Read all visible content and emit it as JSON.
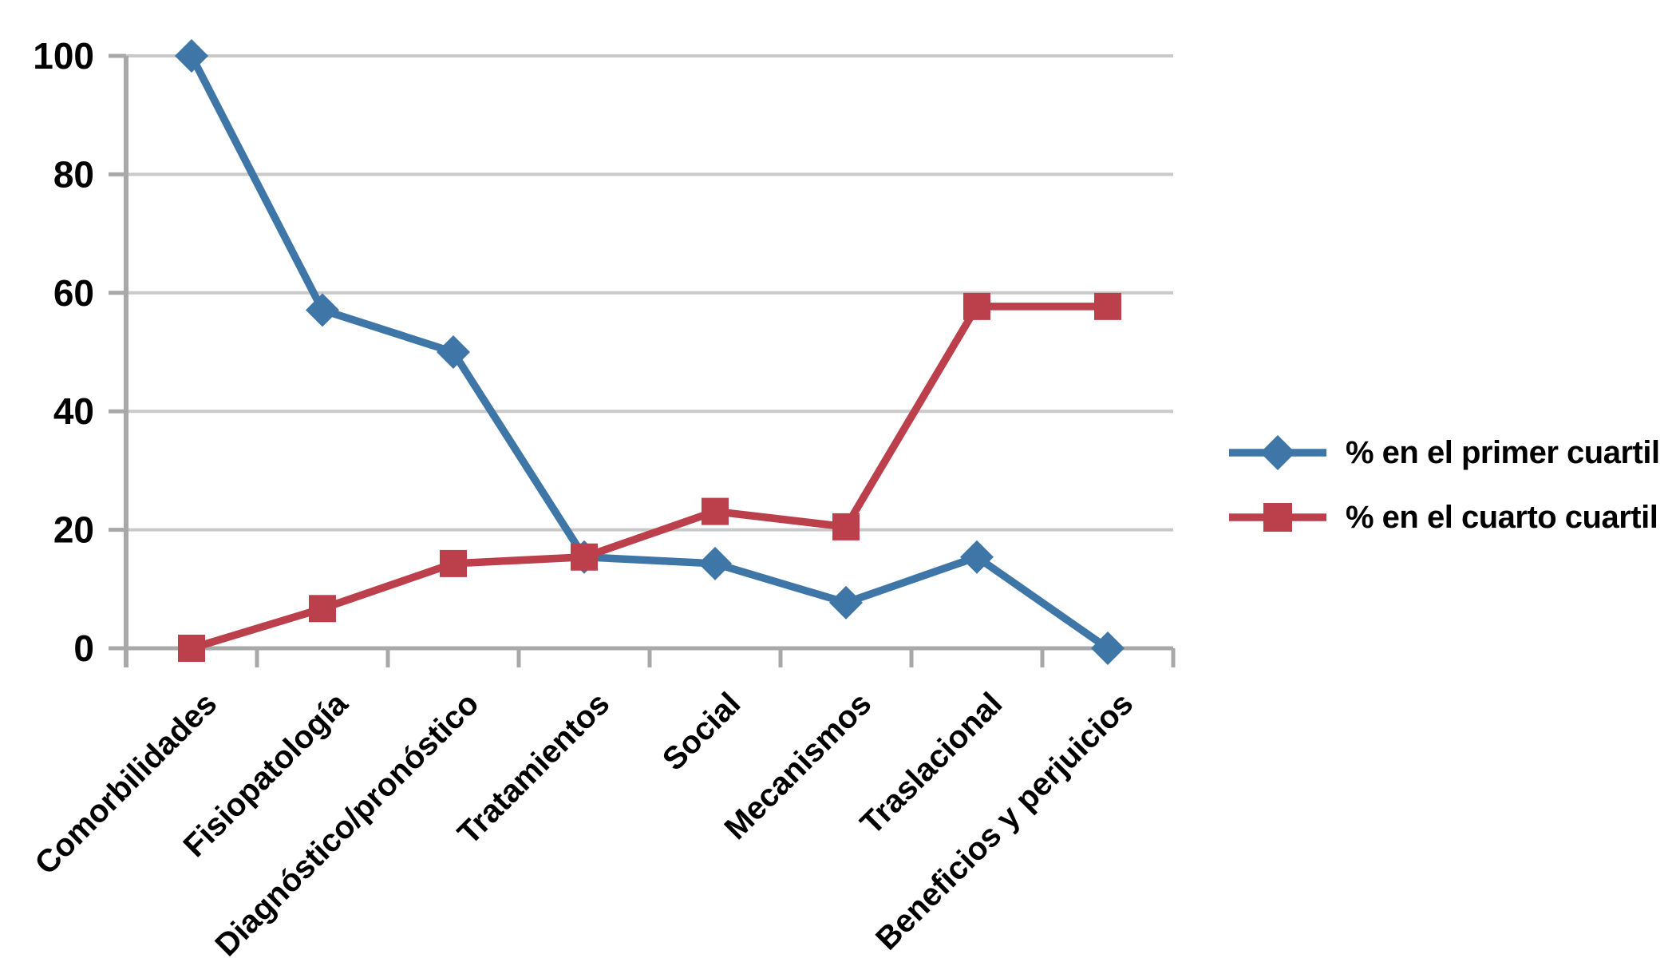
{
  "chart_data": {
    "type": "line",
    "title": "",
    "xlabel": "",
    "ylabel": "",
    "categories": [
      "Comorbilidades",
      "Fisiopatología",
      "Diagnóstico/pronóstico",
      "Tratamientos",
      "Social",
      "Mecanismos",
      "Traslacional",
      "Beneficios y perjuicios"
    ],
    "series": [
      {
        "name": "% en el primer cuartil",
        "marker": "diamond",
        "color": "#3E76A8",
        "values": [
          100,
          57.1,
          50,
          15.4,
          14.3,
          7.7,
          15.4,
          0
        ]
      },
      {
        "name": "% en el cuarto cuartil",
        "marker": "square",
        "color": "#BB404C",
        "values": [
          0,
          6.7,
          14.3,
          15.4,
          23.1,
          20.5,
          57.7,
          57.7
        ]
      }
    ],
    "ylim": [
      0,
      100
    ],
    "yticks": [
      0,
      20,
      40,
      60,
      80,
      100
    ],
    "grid": "horizontal",
    "legend_position": "right"
  },
  "style": {
    "background": "#FFFFFF",
    "gridline_color": "#C9C9C9",
    "axis_color": "#A8A8A8",
    "label_color": "#000000"
  }
}
